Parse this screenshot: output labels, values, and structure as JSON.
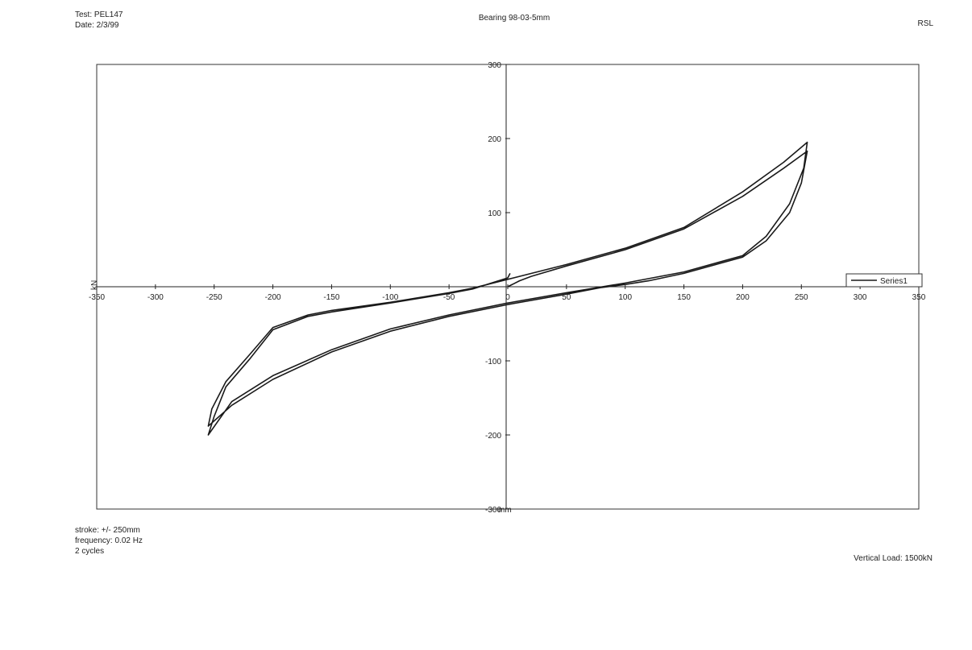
{
  "header": {
    "test": "Test: PEL147",
    "date": "Date: 2/3/99",
    "title": "Bearing 98-03-5mm",
    "org": "RSL"
  },
  "footer": {
    "stroke": "stroke: +/- 250mm",
    "frequency": "frequency: 0.02 Hz",
    "cycles": "2 cycles",
    "vertical_load": "Vertical Load: 1500kN"
  },
  "chart_data": {
    "type": "line",
    "title": "Bearing 98-03-5mm",
    "xlabel": "",
    "ylabel": "",
    "x_unit_label": "mm",
    "y_unit_label": "kN",
    "xlim": [
      -350,
      350
    ],
    "ylim": [
      -300,
      300
    ],
    "x_ticks": [
      -350,
      -300,
      -250,
      -200,
      -150,
      -100,
      -50,
      0,
      50,
      100,
      150,
      200,
      250,
      300,
      350
    ],
    "y_ticks": [
      -300,
      -200,
      -100,
      0,
      100,
      200,
      300
    ],
    "grid": false,
    "legend_position": "right",
    "series": [
      {
        "name": "Series1",
        "color": "#1a1a1a",
        "points": [
          [
            0,
            0
          ],
          [
            10,
            8
          ],
          [
            20,
            14
          ],
          [
            50,
            28
          ],
          [
            100,
            50
          ],
          [
            150,
            78
          ],
          [
            200,
            122
          ],
          [
            235,
            160
          ],
          [
            255,
            183
          ],
          [
            250,
            140
          ],
          [
            240,
            100
          ],
          [
            220,
            62
          ],
          [
            200,
            40
          ],
          [
            150,
            18
          ],
          [
            120,
            8
          ],
          [
            100,
            3
          ],
          [
            80,
            -1
          ],
          [
            50,
            -10
          ],
          [
            0,
            -24
          ],
          [
            -50,
            -40
          ],
          [
            -100,
            -60
          ],
          [
            -150,
            -88
          ],
          [
            -200,
            -125
          ],
          [
            -235,
            -160
          ],
          [
            -255,
            -188
          ],
          [
            -252,
            -165
          ],
          [
            -240,
            -128
          ],
          [
            -220,
            -92
          ],
          [
            -200,
            -55
          ],
          [
            -170,
            -38
          ],
          [
            -150,
            -32
          ],
          [
            -100,
            -21
          ],
          [
            -50,
            -8
          ],
          [
            -30,
            -2
          ],
          [
            0,
            10
          ],
          [
            50,
            30
          ],
          [
            100,
            52
          ],
          [
            150,
            80
          ],
          [
            200,
            128
          ],
          [
            235,
            168
          ],
          [
            255,
            195
          ],
          [
            252,
            160
          ],
          [
            240,
            112
          ],
          [
            220,
            68
          ],
          [
            200,
            42
          ],
          [
            150,
            20
          ],
          [
            100,
            5
          ],
          [
            50,
            -8
          ],
          [
            0,
            -22
          ],
          [
            -50,
            -38
          ],
          [
            -100,
            -57
          ],
          [
            -150,
            -85
          ],
          [
            -200,
            -120
          ],
          [
            -235,
            -155
          ],
          [
            -255,
            -200
          ],
          [
            -250,
            -175
          ],
          [
            -240,
            -135
          ],
          [
            -220,
            -98
          ],
          [
            -200,
            -58
          ],
          [
            -170,
            -40
          ],
          [
            -150,
            -34
          ],
          [
            -100,
            -22
          ],
          [
            -50,
            -9
          ],
          [
            -30,
            -3
          ],
          [
            0,
            12
          ],
          [
            2,
            18
          ]
        ]
      }
    ]
  }
}
